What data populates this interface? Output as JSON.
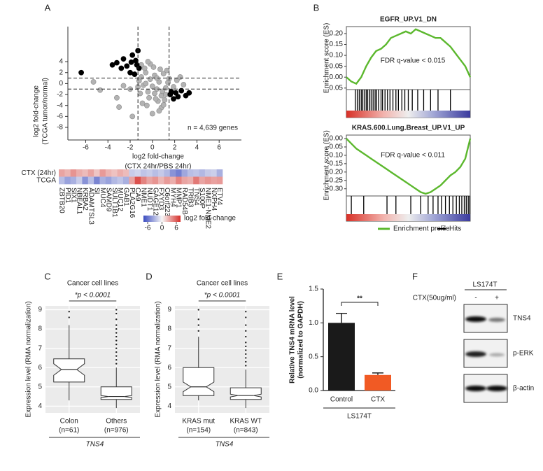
{
  "panel_labels": [
    "A",
    "B",
    "C",
    "D",
    "E",
    "F"
  ],
  "chart_data": [
    {
      "type": "scatter",
      "x_label": [
        "log2 fold-change",
        "(CTX 24hr/PBS 24hr)"
      ],
      "y_label": [
        "log2 fold-change",
        "(TCGA tumor/normal)"
      ],
      "annotation": "n = 4,639 genes",
      "xlim": [
        -7.6,
        8
      ],
      "ylim": [
        -10.3,
        10.4
      ],
      "xticks": [
        -6,
        -4,
        -2,
        0,
        2,
        4,
        6
      ],
      "yticks": [
        -8,
        -6,
        -4,
        -2,
        0,
        2,
        4
      ],
      "thresholds": {
        "x": [
          -1.3,
          1.5
        ],
        "y": [
          -1,
          1
        ]
      },
      "series": [
        {
          "color": "#b3b3b3",
          "x": [
            -1.2,
            -1.0,
            -0.8,
            -0.6,
            -0.4,
            -0.2,
            0,
            0.2,
            0.4,
            0.6,
            0.8,
            1.0,
            1.2,
            1.4,
            -1.1,
            -0.7,
            -0.3,
            0.1,
            0.5,
            0.9,
            1.3,
            -0.9,
            -0.5,
            0.3,
            0.7,
            1.1,
            -1.0,
            0.0,
            0.8,
            -0.6,
            0.4,
            1.2,
            -1.3,
            1.5,
            -2.0,
            -2.6,
            -3.2,
            -4.7,
            -5.3,
            -3.0,
            2.2,
            2.8,
            2.5,
            1.9,
            -0.2,
            0.6,
            -0.4,
            -1.8,
            0.2,
            1.0
          ],
          "values": [
            0.5,
            1.2,
            -0.3,
            2.0,
            -1.5,
            0.8,
            -0.5,
            1.5,
            -1.0,
            0.3,
            -2.2,
            1.8,
            -0.8,
            0.2,
            -1.8,
            2.8,
            -2.6,
            3.0,
            -3.2,
            -1.4,
            2.4,
            -3.6,
            -4.0,
            -2.8,
            2.6,
            -3.0,
            3.4,
            -5.5,
            -4.4,
            0.0,
            1.0,
            -2.0,
            -0.6,
            0.9,
            -1.0,
            -0.4,
            -2.6,
            -1.2,
            0.3,
            -4.3,
            0.6,
            -0.2,
            1.2,
            -0.6,
            3.6,
            -5.0,
            4.0,
            -6.0,
            -1.8,
            -3.9
          ]
        },
        {
          "color": "#000000",
          "x": [
            -6.4,
            -3.6,
            -3.2,
            -2.6,
            -2.3,
            -2.0,
            -1.8,
            -1.5,
            -1.3,
            -1.2,
            -2.8,
            -1.6,
            -1.9,
            -1.4,
            1.7,
            1.9,
            2.1,
            2.3,
            2.6,
            3.0,
            3.3,
            1.6
          ],
          "values": [
            2.0,
            3.4,
            3.8,
            4.5,
            3.2,
            2.0,
            5.2,
            4.2,
            6.0,
            2.8,
            2.8,
            1.7,
            3.9,
            3.4,
            -1.5,
            -2.8,
            -1.7,
            -2.4,
            -1.3,
            -2.2,
            -1.7,
            -2.0
          ]
        }
      ]
    },
    {
      "type": "heatmap",
      "rows": [
        "CTX (24hr)",
        "TCGA"
      ],
      "columns": [
        "ZBTB20",
        "PID1",
        "SIX1",
        "NBEAL1",
        "KRBA2",
        "ADAMTSL3",
        "SI",
        "MUC4",
        "SAMD9",
        "SULT1B1",
        "MUC12",
        "GAB1",
        "PLA2G16",
        "CA9",
        "NME1",
        "NUDT1",
        "GAGE12J",
        "FXYD3",
        "C6orf223",
        "MYH4",
        "MMP1",
        "RAD54B",
        "TRIB3",
        "TNS4",
        "S100P",
        "NME1-NME2",
        "NXPH4",
        "ETV4"
      ],
      "highlight_column": 23,
      "highlight_color": "#e8262b",
      "values": [
        [
          2.5,
          2.0,
          3.0,
          2.2,
          1.8,
          2.5,
          1.5,
          2.8,
          2.0,
          1.6,
          2.2,
          1.8,
          -1.5,
          -1.2,
          -1.8,
          -1.5,
          -2.0,
          -1.6,
          -2.2,
          -3.5,
          -4.2,
          -2.8,
          -2.0,
          -1.8,
          -2.2,
          -1.6,
          -1.4,
          -2.5
        ],
        [
          -2.0,
          -3.0,
          -2.5,
          -1.5,
          -3.5,
          -2.0,
          -4.0,
          -2.5,
          -3.0,
          -2.2,
          -1.8,
          -2.5,
          2.5,
          5.0,
          3.5,
          2.5,
          3.0,
          2.0,
          2.8,
          2.2,
          3.5,
          2.5,
          2.2,
          3.8,
          2.5,
          3.0,
          2.6,
          2.8
        ]
      ],
      "colors": [
        "#3b4cc0",
        "#f7f7f7",
        "#d6302b"
      ],
      "colorbar_label": "log2 fold-change",
      "zlim": [
        -6,
        6
      ],
      "zticks": [
        -6,
        0,
        6
      ]
    },
    {
      "type": "line",
      "title": "EGFR_UP.V1_DN",
      "y_label": "Enrichment score (ES)",
      "annotation": "FDR q-value < 0.015",
      "color": "#5cb82e",
      "hit_color": "#000000",
      "xlim": [
        0,
        25
      ],
      "ylim": [
        -0.057,
        0.232
      ],
      "yticks": [
        {
          "value": 0.2,
          "label": "0.20"
        },
        0.15,
        {
          "value": 0.1,
          "label": "0.10"
        },
        0.05,
        {
          "value": 0,
          "label": "0.00"
        },
        -0.05
      ],
      "values": [
        0,
        -0.02,
        -0.03,
        0.0,
        0.05,
        0.09,
        0.12,
        0.13,
        0.15,
        0.18,
        0.19,
        0.2,
        0.21,
        0.2,
        0.22,
        0.21,
        0.2,
        0.19,
        0.18,
        0.18,
        0.16,
        0.14,
        0.11,
        0.08,
        0.05,
        0.0
      ],
      "hits": [
        1.8,
        2.2,
        2.6,
        3.0,
        3.3,
        3.6,
        4.0,
        4.3,
        4.7,
        5.0,
        5.4,
        5.8,
        6.1,
        6.5,
        7.0,
        7.3,
        7.8,
        8.3,
        8.8,
        9.4,
        10.0,
        10.5,
        11.2,
        11.8,
        12.5,
        13.3,
        14.4,
        15.6,
        17.0,
        18.5,
        21.0
      ]
    },
    {
      "type": "line",
      "title": "KRAS.600.Lung.Breast_UP.V1_UP",
      "y_label": "Enrichment score (ES)",
      "annotation": "FDR q-value < 0.011",
      "color": "#5cb82e",
      "hit_color": "#000000",
      "xlim": [
        0,
        25
      ],
      "ylim": [
        -0.343,
        0.021
      ],
      "yticks": [
        {
          "value": 0,
          "label": "0.00"
        },
        -0.05,
        {
          "value": -0.1,
          "label": "-0.10"
        },
        -0.15,
        {
          "value": -0.2,
          "label": "-0.20"
        },
        -0.25,
        {
          "value": -0.3,
          "label": "-0.30"
        }
      ],
      "values": [
        0,
        -0.03,
        -0.06,
        -0.08,
        -0.1,
        -0.12,
        -0.14,
        -0.16,
        -0.18,
        -0.2,
        -0.22,
        -0.24,
        -0.26,
        -0.28,
        -0.3,
        -0.32,
        -0.33,
        -0.32,
        -0.3,
        -0.28,
        -0.25,
        -0.22,
        -0.2,
        -0.17,
        -0.12,
        0.0
      ],
      "hits": [
        1.0,
        3.5,
        8.2,
        10.0,
        13.0,
        15.0,
        16.5,
        17.5,
        18.5,
        19.2,
        20.0,
        20.8,
        21.5,
        22.2,
        22.8,
        23.3,
        23.8,
        24.2,
        24.6,
        24.9
      ],
      "legend": [
        {
          "name": "Enrichment profile",
          "color": "#5cb82e"
        },
        {
          "name": "Hits",
          "color": "#000000"
        }
      ]
    },
    {
      "type": "box",
      "title": "Cancer cell lines",
      "annotation": "*p < 0.0001",
      "y_label": "Expression level (RMA normalization)",
      "ylim": [
        3.65,
        9.2
      ],
      "yticks": [
        4,
        5,
        6,
        7,
        8,
        9
      ],
      "categories": [
        "Colon",
        "Others"
      ],
      "category_notes": [
        "(n=61)",
        "(n=976)"
      ],
      "group_label": "TNS4",
      "boxes": [
        {
          "whisker_low": 4.3,
          "q1": 5.25,
          "notch_low": 5.6,
          "median": 5.9,
          "notch_high": 6.2,
          "q3": 6.45,
          "whisker_high": 8.2,
          "outliers": [
            8.6,
            8.9
          ]
        },
        {
          "whisker_low": 3.9,
          "q1": 4.35,
          "notch_low": 4.45,
          "median": 4.5,
          "notch_high": 4.55,
          "q3": 5.0,
          "whisker_high": 6.0,
          "outliers": [
            6.2,
            6.4,
            6.6,
            6.8,
            7.0,
            7.2,
            7.4,
            7.6,
            7.8,
            8.0,
            8.2,
            8.5,
            8.8,
            9.0
          ]
        }
      ]
    },
    {
      "type": "box",
      "title": "Cancer cell lines",
      "annotation": "*p < 0.0001",
      "y_label": "Expression level (RMA normalization)",
      "ylim": [
        3.65,
        9.2
      ],
      "yticks": [
        4,
        5,
        6,
        7,
        8,
        9
      ],
      "categories": [
        "KRAS mut",
        "KRAS WT"
      ],
      "category_notes": [
        "(n=154)",
        "(n=843)"
      ],
      "group_label": "TNS4",
      "boxes": [
        {
          "whisker_low": 4.3,
          "q1": 4.55,
          "notch_low": 4.75,
          "median": 5.0,
          "notch_high": 5.25,
          "q3": 6.0,
          "whisker_high": 7.6,
          "outliers": [
            7.9,
            8.2,
            8.5,
            9.0
          ]
        },
        {
          "whisker_low": 3.9,
          "q1": 4.35,
          "notch_low": 4.48,
          "median": 4.55,
          "notch_high": 4.62,
          "q3": 4.95,
          "whisker_high": 5.9,
          "outliers": [
            6.1,
            6.3,
            6.5,
            6.7,
            6.9,
            7.1,
            7.3,
            7.6,
            7.9,
            8.2,
            8.6,
            8.9
          ]
        }
      ]
    },
    {
      "type": "bar",
      "y_label": [
        "Relative TNS4 mRNA level",
        "(normalized to GAPDH)"
      ],
      "categories": [
        "Control",
        "CTX"
      ],
      "values": [
        1.0,
        0.23
      ],
      "errors": [
        0.14,
        0.03
      ],
      "colors": [
        "#1a1a1a",
        "#f15a24"
      ],
      "ylim": [
        0,
        1.5
      ],
      "yticks": [
        {
          "value": 0,
          "label": "0.0"
        },
        0.5,
        {
          "value": 1,
          "label": "1.0"
        },
        {
          "value": 1.5,
          "label": "1.5"
        }
      ],
      "annotation": "**",
      "group_label": "LS174T"
    }
  ],
  "blot": {
    "cell_line": "LS174T",
    "treatment": "CTX(50ug/ml)",
    "lanes": [
      "-",
      "+"
    ],
    "bands": [
      "TNS4",
      "p-ERK",
      "β-actin"
    ]
  }
}
